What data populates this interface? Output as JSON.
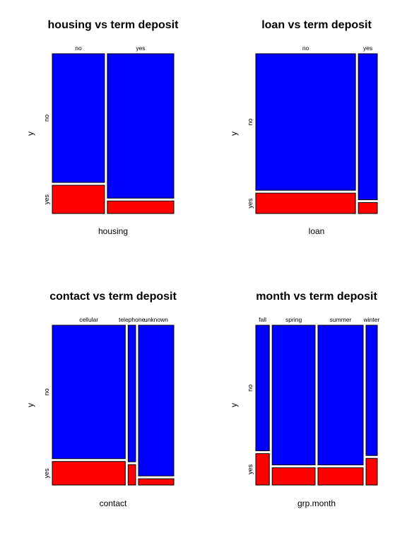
{
  "colors": {
    "no": "#0000ff",
    "yes": "#ff0000",
    "border": "#000000"
  },
  "chart_data": [
    {
      "type": "mosaic",
      "title": "housing vs term deposit",
      "xlabel": "housing",
      "ylabel": "y",
      "categories": [
        "no",
        "yes"
      ],
      "category_widths": [
        0.44,
        0.56
      ],
      "series": [
        {
          "name": "no",
          "values": [
            0.82,
            0.92
          ]
        },
        {
          "name": "yes",
          "values": [
            0.18,
            0.08
          ]
        }
      ]
    },
    {
      "type": "mosaic",
      "title": "loan vs term deposit",
      "xlabel": "loan",
      "ylabel": "y",
      "categories": [
        "no",
        "yes"
      ],
      "category_widths": [
        0.84,
        0.16
      ],
      "series": [
        {
          "name": "no",
          "values": [
            0.87,
            0.93
          ]
        },
        {
          "name": "yes",
          "values": [
            0.13,
            0.07
          ]
        }
      ]
    },
    {
      "type": "mosaic",
      "title": "contact vs term deposit",
      "xlabel": "contact",
      "ylabel": "y",
      "categories": [
        "cellular",
        "telephone",
        "unknown"
      ],
      "category_widths": [
        0.63,
        0.065,
        0.305
      ],
      "series": [
        {
          "name": "no",
          "values": [
            0.85,
            0.87,
            0.96
          ]
        },
        {
          "name": "yes",
          "values": [
            0.15,
            0.13,
            0.04
          ]
        }
      ]
    },
    {
      "type": "mosaic",
      "title": "month vs term deposit",
      "xlabel": "grp.month",
      "ylabel": "y",
      "categories": [
        "fall",
        "spring",
        "summer",
        "winter"
      ],
      "category_widths": [
        0.12,
        0.38,
        0.4,
        0.1
      ],
      "series": [
        {
          "name": "no",
          "values": [
            0.8,
            0.89,
            0.89,
            0.83
          ]
        },
        {
          "name": "yes",
          "values": [
            0.2,
            0.11,
            0.11,
            0.17
          ]
        }
      ]
    }
  ]
}
